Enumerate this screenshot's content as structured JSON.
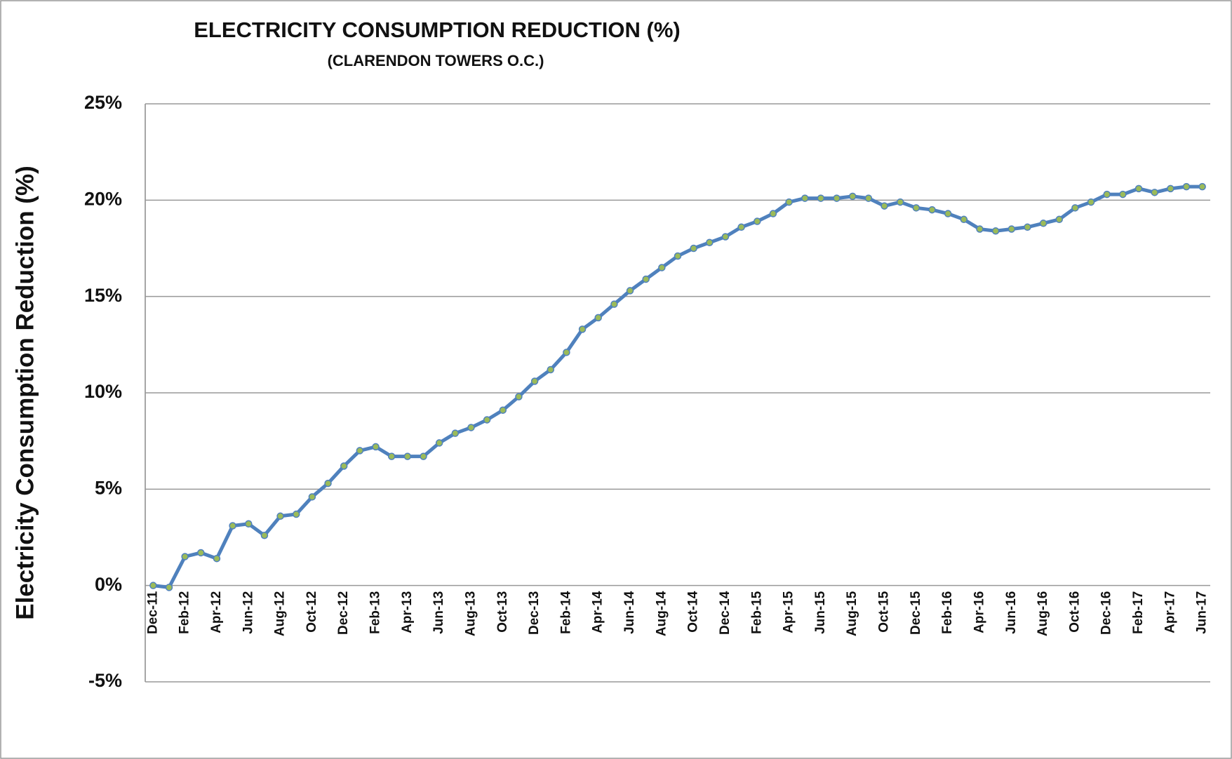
{
  "chart_data": {
    "type": "line",
    "title": "ELECTRICITY CONSUMPTION REDUCTION (%)",
    "subtitle": "(CLARENDON TOWERS O.C.)",
    "y_label": "Electricity Consumption Reduction (%)",
    "categories": [
      "Dec-11",
      null,
      "Feb-12",
      null,
      "Apr-12",
      null,
      "Jun-12",
      null,
      "Aug-12",
      null,
      "Oct-12",
      null,
      "Dec-12",
      null,
      "Feb-13",
      null,
      "Apr-13",
      null,
      "Jun-13",
      null,
      "Aug-13",
      null,
      "Oct-13",
      null,
      "Dec-13",
      null,
      "Feb-14",
      null,
      "Apr-14",
      null,
      "Jun-14",
      null,
      "Aug-14",
      null,
      "Oct-14",
      null,
      "Dec-14",
      null,
      "Feb-15",
      null,
      "Apr-15",
      null,
      "Jun-15",
      null,
      "Aug-15",
      null,
      "Oct-15",
      null,
      "Dec-15",
      null,
      "Feb-16",
      null,
      "Apr-16",
      null,
      "Jun-16",
      null,
      "Aug-16",
      null,
      "Oct-16",
      null,
      "Dec-16",
      null,
      "Feb-17",
      null,
      "Apr-17",
      null,
      "Jun-17"
    ],
    "series": [
      {
        "color": "#4f81bd",
        "marker_color": "#9bbb59",
        "values": [
          0.0,
          -0.1,
          1.5,
          1.7,
          1.4,
          3.1,
          3.2,
          2.6,
          3.6,
          3.7,
          4.6,
          5.3,
          6.2,
          7.0,
          7.2,
          6.7,
          6.7,
          6.7,
          7.4,
          7.9,
          8.2,
          8.6,
          9.1,
          9.8,
          10.6,
          11.2,
          12.1,
          13.3,
          13.9,
          14.6,
          15.3,
          15.9,
          16.5,
          17.1,
          17.5,
          17.8,
          18.1,
          18.6,
          18.9,
          19.3,
          19.9,
          20.1,
          20.1,
          20.1,
          20.2,
          20.1,
          19.7,
          19.9,
          19.6,
          19.5,
          19.3,
          19.0,
          18.5,
          18.4,
          18.5,
          18.6,
          18.8,
          19.0,
          19.6,
          19.9,
          20.3,
          20.3,
          20.6,
          20.4,
          20.6,
          20.7,
          20.7
        ]
      }
    ],
    "ylim": [
      -5,
      25
    ],
    "yticks": [
      {
        "value": -5,
        "label": "-5%"
      },
      {
        "value": 0,
        "label": "0%"
      },
      {
        "value": 5,
        "label": "5%"
      },
      {
        "value": 10,
        "label": "10%"
      },
      {
        "value": 15,
        "label": "15%"
      },
      {
        "value": 20,
        "label": "20%"
      },
      {
        "value": 25,
        "label": "25%"
      }
    ],
    "grid": true
  }
}
